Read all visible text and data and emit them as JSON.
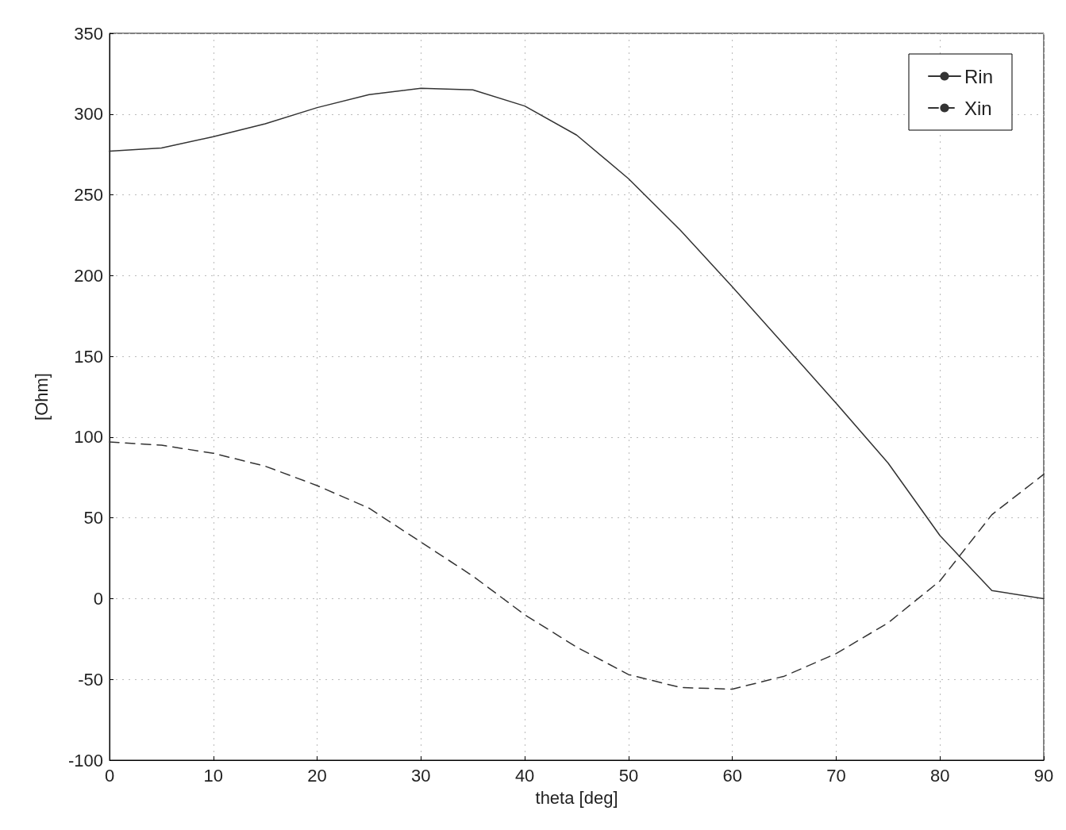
{
  "chart_data": {
    "type": "line",
    "xlabel": "theta [deg]",
    "ylabel": "[Ohm]",
    "x": [
      0,
      5,
      10,
      15,
      20,
      25,
      30,
      35,
      40,
      45,
      50,
      55,
      60,
      65,
      70,
      75,
      80,
      85,
      90
    ],
    "series": [
      {
        "name": "Rin",
        "color": "#333333",
        "line_style": "solid",
        "values": [
          277,
          279,
          286,
          294,
          304,
          312,
          316,
          315,
          305,
          287,
          260,
          228,
          193,
          157,
          121,
          84,
          39,
          5,
          0
        ]
      },
      {
        "name": "Xin",
        "color": "#333333",
        "line_style": "dashed",
        "values": [
          97,
          95,
          90,
          82,
          70,
          56,
          35,
          14,
          -10,
          -30,
          -47,
          -55,
          -56,
          -48,
          -34,
          -15,
          11,
          52,
          77
        ]
      }
    ],
    "xlim": [
      0,
      90
    ],
    "xticks": [
      0,
      10,
      20,
      30,
      40,
      50,
      60,
      70,
      80,
      90
    ],
    "ylim": [
      -100,
      350
    ],
    "yticks": [
      -100,
      -50,
      0,
      50,
      100,
      150,
      200,
      250,
      300,
      350
    ],
    "grid": true,
    "legend": "top right",
    "marker": "none"
  }
}
